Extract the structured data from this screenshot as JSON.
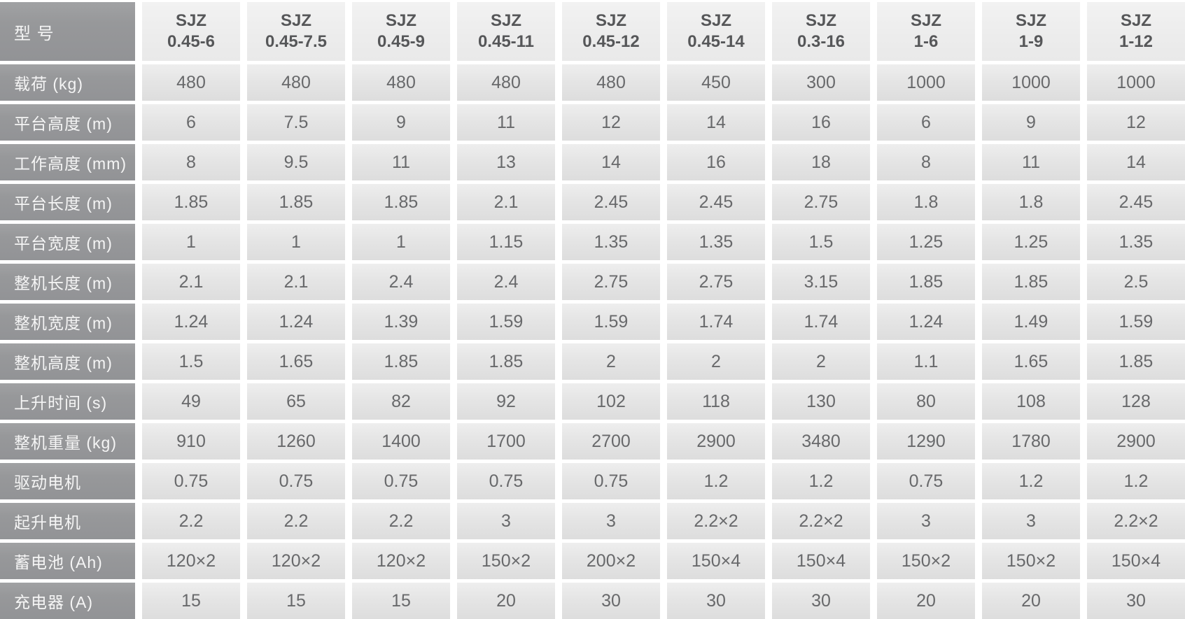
{
  "table": {
    "corner_label": "型 号",
    "columns": [
      {
        "brand": "SJZ",
        "model": "0.45-6"
      },
      {
        "brand": "SJZ",
        "model": "0.45-7.5"
      },
      {
        "brand": "SJZ",
        "model": "0.45-9"
      },
      {
        "brand": "SJZ",
        "model": "0.45-11"
      },
      {
        "brand": "SJZ",
        "model": "0.45-12"
      },
      {
        "brand": "SJZ",
        "model": "0.45-14"
      },
      {
        "brand": "SJZ",
        "model": "0.3-16"
      },
      {
        "brand": "SJZ",
        "model": "1-6"
      },
      {
        "brand": "SJZ",
        "model": "1-9"
      },
      {
        "brand": "SJZ",
        "model": "1-12"
      }
    ],
    "rows": [
      {
        "label": "载荷 (kg)",
        "values": [
          "480",
          "480",
          "480",
          "480",
          "480",
          "450",
          "300",
          "1000",
          "1000",
          "1000"
        ]
      },
      {
        "label": "平台高度 (m)",
        "values": [
          "6",
          "7.5",
          "9",
          "11",
          "12",
          "14",
          "16",
          "6",
          "9",
          "12"
        ]
      },
      {
        "label": "工作高度 (mm)",
        "values": [
          "8",
          "9.5",
          "11",
          "13",
          "14",
          "16",
          "18",
          "8",
          "11",
          "14"
        ]
      },
      {
        "label": "平台长度 (m)",
        "values": [
          "1.85",
          "1.85",
          "1.85",
          "2.1",
          "2.45",
          "2.45",
          "2.75",
          "1.8",
          "1.8",
          "2.45"
        ]
      },
      {
        "label": "平台宽度 (m)",
        "values": [
          "1",
          "1",
          "1",
          "1.15",
          "1.35",
          "1.35",
          "1.5",
          "1.25",
          "1.25",
          "1.35"
        ]
      },
      {
        "label": "整机长度 (m)",
        "values": [
          "2.1",
          "2.1",
          "2.4",
          "2.4",
          "2.75",
          "2.75",
          "3.15",
          "1.85",
          "1.85",
          "2.5"
        ]
      },
      {
        "label": "整机宽度 (m)",
        "values": [
          "1.24",
          "1.24",
          "1.39",
          "1.59",
          "1.59",
          "1.74",
          "1.74",
          "1.24",
          "1.49",
          "1.59"
        ]
      },
      {
        "label": "整机高度 (m)",
        "values": [
          "1.5",
          "1.65",
          "1.85",
          "1.85",
          "2",
          "2",
          "2",
          "1.1",
          "1.65",
          "1.85"
        ]
      },
      {
        "label": "上升时间 (s)",
        "values": [
          "49",
          "65",
          "82",
          "92",
          "102",
          "118",
          "130",
          "80",
          "108",
          "128"
        ]
      },
      {
        "label": "整机重量 (kg)",
        "values": [
          "910",
          "1260",
          "1400",
          "1700",
          "2700",
          "2900",
          "3480",
          "1290",
          "1780",
          "2900"
        ]
      },
      {
        "label": "驱动电机",
        "values": [
          "0.75",
          "0.75",
          "0.75",
          "0.75",
          "0.75",
          "1.2",
          "1.2",
          "0.75",
          "1.2",
          "1.2"
        ]
      },
      {
        "label": "起升电机",
        "values": [
          "2.2",
          "2.2",
          "2.2",
          "3",
          "3",
          "2.2×2",
          "2.2×2",
          "3",
          "3",
          "2.2×2"
        ]
      },
      {
        "label": "蓄电池 (Ah)",
        "values": [
          "120×2",
          "120×2",
          "120×2",
          "150×2",
          "200×2",
          "150×4",
          "150×4",
          "150×2",
          "150×2",
          "150×4"
        ]
      },
      {
        "label": "充电器 (A)",
        "values": [
          "15",
          "15",
          "15",
          "20",
          "30",
          "30",
          "30",
          "20",
          "20",
          "30"
        ]
      }
    ],
    "colors": {
      "label_cell_bg": "#97989a",
      "label_text": "#f5f5f5",
      "header_cell_bg": "#eeeeee",
      "header_text": "#565759",
      "value_cell_bg": "#e4e4e4",
      "value_text": "#68696b",
      "gutter": "#ffffff"
    }
  }
}
